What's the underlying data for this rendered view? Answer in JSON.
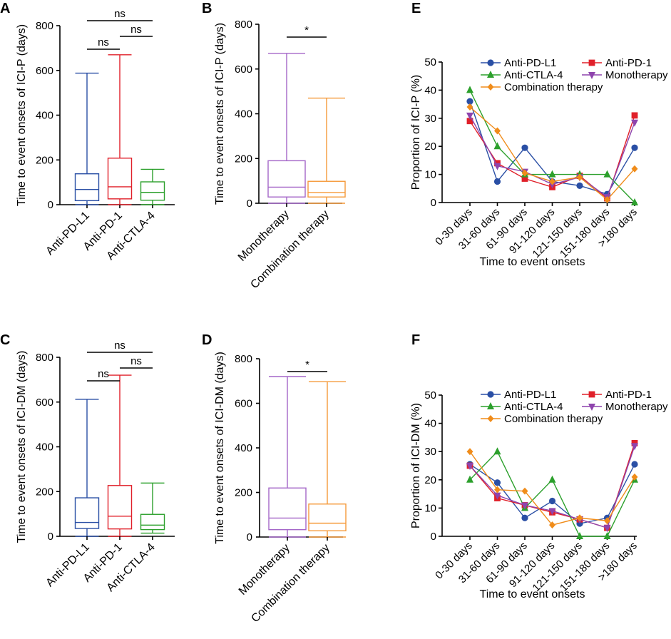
{
  "colors": {
    "anti_pd_l1": "#2a4fa5",
    "anti_pd_1": "#e0202a",
    "anti_ctla_4": "#2ca02c",
    "monotherapy": "#8e44ad",
    "combination": "#f08c1a",
    "box_monotherapy": "#a466c8",
    "box_combination": "#f59a3a"
  },
  "chart_data": [
    {
      "id": "A",
      "panel_label": "A",
      "type": "box",
      "ylabel": "Time to event onsets of ICI-P (days)",
      "ylim": [
        0,
        800
      ],
      "yticks": [
        "0",
        "200",
        "400",
        "600",
        "800"
      ],
      "categories": [
        "Anti-PD-L1",
        "Anti-PD-1",
        "Anti-CTLA-4"
      ],
      "series": [
        {
          "name": "Anti-PD-L1",
          "color_key": "anti_pd_l1",
          "min": 0,
          "q1": 18,
          "median": 68,
          "q3": 138,
          "max": 588
        },
        {
          "name": "Anti-PD-1",
          "color_key": "anti_pd_1",
          "min": 0,
          "q1": 26,
          "median": 80,
          "q3": 208,
          "max": 670
        },
        {
          "name": "Anti-CTLA-4",
          "color_key": "anti_ctla_4",
          "min": 0,
          "q1": 20,
          "median": 55,
          "q3": 102,
          "max": 158
        }
      ],
      "brackets": [
        {
          "from": 0,
          "to": 1,
          "label": "ns",
          "level": 0
        },
        {
          "from": 1,
          "to": 2,
          "label": "ns",
          "level": 1
        },
        {
          "from": 0,
          "to": 2,
          "label": "ns",
          "level": 2
        }
      ]
    },
    {
      "id": "B",
      "panel_label": "B",
      "type": "box",
      "ylabel": "Time to event onsets of ICI-P (days)",
      "ylim": [
        0,
        800
      ],
      "yticks": [
        "0",
        "200",
        "400",
        "600",
        "800"
      ],
      "categories": [
        "Monotherapy",
        "Combination therapy"
      ],
      "series": [
        {
          "name": "Monotherapy",
          "color_key": "box_monotherapy",
          "min": 0,
          "q1": 28,
          "median": 72,
          "q3": 190,
          "max": 670
        },
        {
          "name": "Combination therapy",
          "color_key": "box_combination",
          "min": 0,
          "q1": 28,
          "median": 48,
          "q3": 98,
          "max": 470
        }
      ],
      "brackets": [
        {
          "from": 0,
          "to": 1,
          "label": "*",
          "level": 0
        }
      ]
    },
    {
      "id": "C",
      "panel_label": "C",
      "type": "box",
      "ylabel": "Time to event onsets of ICI-DM (days)",
      "ylim": [
        0,
        800
      ],
      "yticks": [
        "0",
        "200",
        "400",
        "600",
        "800"
      ],
      "categories": [
        "Anti-PD-L1",
        "Anti-PD-1",
        "Anti-CTLA-4"
      ],
      "series": [
        {
          "name": "Anti-PD-L1",
          "color_key": "anti_pd_l1",
          "min": 0,
          "q1": 35,
          "median": 62,
          "q3": 172,
          "max": 612
        },
        {
          "name": "Anti-PD-1",
          "color_key": "anti_pd_1",
          "min": 0,
          "q1": 33,
          "median": 90,
          "q3": 227,
          "max": 720
        },
        {
          "name": "Anti-CTLA-4",
          "color_key": "anti_ctla_4",
          "min": 14,
          "q1": 30,
          "median": 50,
          "q3": 98,
          "max": 238
        }
      ],
      "brackets": [
        {
          "from": 0,
          "to": 1,
          "label": "ns",
          "level": 0
        },
        {
          "from": 1,
          "to": 2,
          "label": "ns",
          "level": 1
        },
        {
          "from": 0,
          "to": 2,
          "label": "ns",
          "level": 2
        }
      ]
    },
    {
      "id": "D",
      "panel_label": "D",
      "type": "box",
      "ylabel": "Time to event onsets of ICI-DM (days)",
      "ylim": [
        0,
        800
      ],
      "yticks": [
        "0",
        "200",
        "400",
        "600",
        "800"
      ],
      "categories": [
        "Monotherapy",
        "Combination therapy"
      ],
      "series": [
        {
          "name": "Monotherapy",
          "color_key": "box_monotherapy",
          "min": 0,
          "q1": 33,
          "median": 85,
          "q3": 220,
          "max": 720
        },
        {
          "name": "Combination therapy",
          "color_key": "box_combination",
          "min": 0,
          "q1": 28,
          "median": 62,
          "q3": 148,
          "max": 697
        }
      ],
      "brackets": [
        {
          "from": 0,
          "to": 1,
          "label": "*",
          "level": 0
        }
      ]
    },
    {
      "id": "E",
      "panel_label": "E",
      "type": "line",
      "ylabel": "Proportion of ICI-P (%)",
      "xlabel": "Time to event onsets",
      "ylim": [
        0,
        50
      ],
      "yticks": [
        "0",
        "10",
        "20",
        "30",
        "40",
        "50"
      ],
      "categories": [
        "0-30 days",
        "31-60 days",
        "61-90 days",
        "91-120 days",
        "121-150 days",
        "151-180 days",
        ">180 days"
      ],
      "legend_rows": [
        [
          "Anti-PD-L1",
          "Anti-PD-1"
        ],
        [
          "Anti-CTLA-4",
          "Monotherapy"
        ],
        [
          "Combination therapy"
        ]
      ],
      "series": [
        {
          "name": "Anti-PD-L1",
          "marker": "circle",
          "color_key": "anti_pd_l1",
          "values": [
            36,
            7.5,
            19.5,
            7.5,
            6,
            3,
            19.5
          ]
        },
        {
          "name": "Anti-PD-1",
          "marker": "square",
          "color_key": "anti_pd_1",
          "values": [
            29,
            14,
            8.5,
            5.5,
            9.5,
            1.5,
            31
          ]
        },
        {
          "name": "Anti-CTLA-4",
          "marker": "triangle",
          "color_key": "anti_ctla_4",
          "values": [
            40,
            20,
            10,
            10,
            10,
            10,
            0
          ]
        },
        {
          "name": "Monotherapy",
          "marker": "triangle-down",
          "color_key": "monotherapy",
          "values": [
            31,
            13,
            11,
            6.5,
            9,
            2,
            28.5
          ]
        },
        {
          "name": "Combination therapy",
          "marker": "diamond",
          "color_key": "combination",
          "values": [
            34,
            25.5,
            10.5,
            7.5,
            9,
            1,
            12
          ]
        }
      ]
    },
    {
      "id": "F",
      "panel_label": "F",
      "type": "line",
      "ylabel": "Proportion of ICI-DM (%)",
      "xlabel": "Time to event onsets",
      "ylim": [
        0,
        50
      ],
      "yticks": [
        "0",
        "10",
        "20",
        "30",
        "40",
        "50"
      ],
      "categories": [
        "0-30 days",
        "31-60 days",
        "61-90 days",
        "91-120 days",
        "121-150 days",
        "151-180 days",
        ">180 days"
      ],
      "legend_rows": [
        [
          "Anti-PD-L1",
          "Anti-PD-1"
        ],
        [
          "Anti-CTLA-4",
          "Monotherapy"
        ],
        [
          "Combination therapy"
        ]
      ],
      "series": [
        {
          "name": "Anti-PD-L1",
          "marker": "circle",
          "color_key": "anti_pd_l1",
          "values": [
            25.5,
            19,
            6.5,
            12.5,
            4.5,
            6.5,
            25.5
          ]
        },
        {
          "name": "Anti-PD-1",
          "marker": "square",
          "color_key": "anti_pd_1",
          "values": [
            25,
            13.5,
            11,
            8.5,
            6,
            3,
            33
          ]
        },
        {
          "name": "Anti-CTLA-4",
          "marker": "triangle",
          "color_key": "anti_ctla_4",
          "values": [
            20,
            30,
            10,
            20,
            0,
            0,
            20
          ]
        },
        {
          "name": "Monotherapy",
          "marker": "triangle-down",
          "color_key": "monotherapy",
          "values": [
            25,
            14.5,
            11,
            9,
            6,
            3,
            32
          ]
        },
        {
          "name": "Combination therapy",
          "marker": "diamond",
          "color_key": "combination",
          "values": [
            30,
            16.5,
            16,
            4,
            6.5,
            5.5,
            21
          ]
        }
      ]
    }
  ]
}
